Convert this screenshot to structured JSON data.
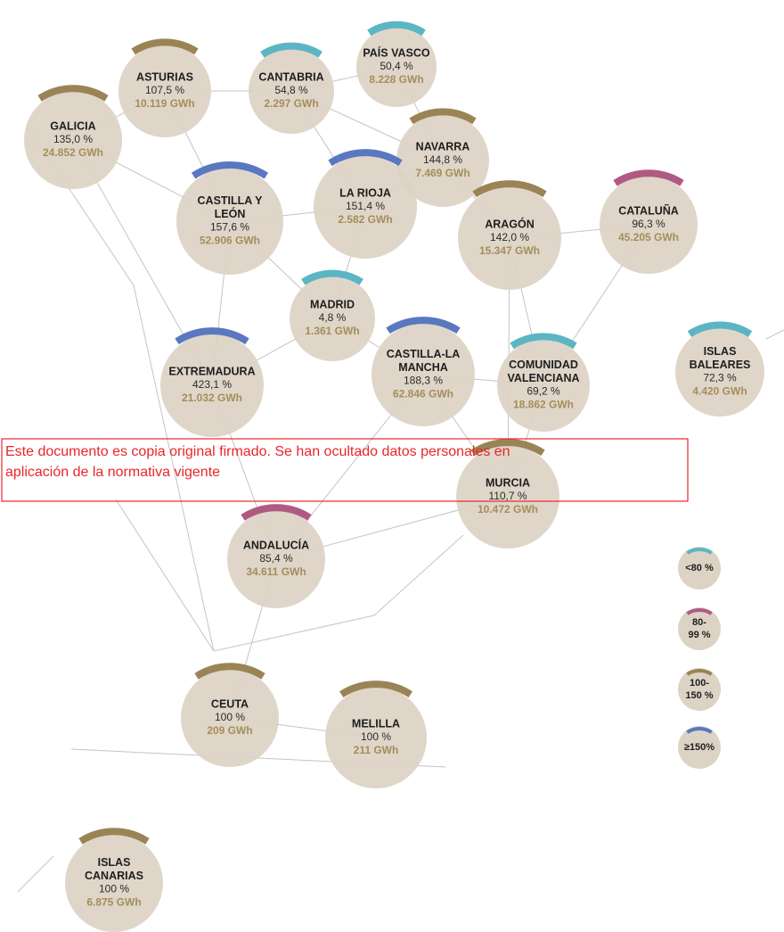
{
  "nodes": [
    {
      "label": [
        "PAÍS VASCO"
      ],
      "percent": "50,4 %",
      "energy": "8.228 GWh",
      "color": "#5bb5c4"
    },
    {
      "label": [
        "ASTURIAS"
      ],
      "percent": "107,5 %",
      "energy": "10.119 GWh",
      "color": "#9a8455"
    },
    {
      "label": [
        "CANTABRIA"
      ],
      "percent": "54,8 %",
      "energy": "2.297 GWh",
      "color": "#5bb5c4"
    },
    {
      "label": [
        "GALICIA"
      ],
      "percent": "135,0 %",
      "energy": "24.852 GWh",
      "color": "#9a8455"
    },
    {
      "label": [
        "NAVARRA"
      ],
      "percent": "144,8 %",
      "energy": "7.469 GWh",
      "color": "#9a8455"
    },
    {
      "label": [
        "CATALUÑA"
      ],
      "percent": "96,3 %",
      "energy": "45.205 GWh",
      "color": "#b05a82"
    },
    {
      "label": [
        "CASTILLA Y",
        "LEÓN"
      ],
      "percent": "157,6 %",
      "energy": "52.906 GWh",
      "color": "#5a78c0"
    },
    {
      "label": [
        "LA RIOJA"
      ],
      "percent": "151,4 %",
      "energy": "2.582 GWh",
      "color": "#5a78c0"
    },
    {
      "label": [
        "ARAGÓN"
      ],
      "percent": "142,0 %",
      "energy": "15.347 GWh",
      "color": "#9a8455"
    },
    {
      "label": [
        "MADRID"
      ],
      "percent": "4,8 %",
      "energy": "1.361 GWh",
      "color": "#5bb5c4"
    },
    {
      "label": [
        "CASTILLA-LA",
        "MANCHA"
      ],
      "percent": "188,3 %",
      "energy": "62.846 GWh",
      "color": "#5a78c0"
    },
    {
      "label": [
        "COMUNIDAD",
        "VALENCIANA"
      ],
      "percent": "69,2 %",
      "energy": "18.862 GWh",
      "color": "#5bb5c4"
    },
    {
      "label": [
        "ISLAS",
        "BALEARES"
      ],
      "percent": "72,3 %",
      "energy": "4.420 GWh",
      "color": "#5bb5c4"
    },
    {
      "label": [
        "EXTREMADURA"
      ],
      "percent": "423,1 %",
      "energy": "21.032 GWh",
      "color": "#5a78c0"
    },
    {
      "label": [
        "MURCIA"
      ],
      "percent": "110,7 %",
      "energy": "10.472 GWh",
      "color": "#9a8455"
    },
    {
      "label": [
        "ANDALUCÍA"
      ],
      "percent": "85,4 %",
      "energy": "34.611 GWh",
      "color": "#b05a82"
    },
    {
      "label": [
        "CEUTA"
      ],
      "percent": "100 %",
      "energy": "209 GWh",
      "color": "#9a8455"
    },
    {
      "label": [
        "MELILLA"
      ],
      "percent": "100 %",
      "energy": "211 GWh",
      "color": "#9a8455"
    },
    {
      "label": [
        "ISLAS",
        "CANARIAS"
      ],
      "percent": "100 %",
      "energy": "6.875 GWh",
      "color": "#9a8455"
    }
  ],
  "legend": [
    {
      "label": [
        "<80 %"
      ],
      "color": "#5bb5c4"
    },
    {
      "label": [
        "80-",
        "99 %"
      ],
      "color": "#b05a82"
    },
    {
      "label": [
        "100-",
        "150 %"
      ],
      "color": "#9a8455"
    },
    {
      "label": [
        "≥150%"
      ],
      "color": "#5a78c0"
    }
  ],
  "notice": [
    "Este documento es copia original firmado. Se han ocultado datos personales en",
    "aplicación de la normativa vigente"
  ]
}
